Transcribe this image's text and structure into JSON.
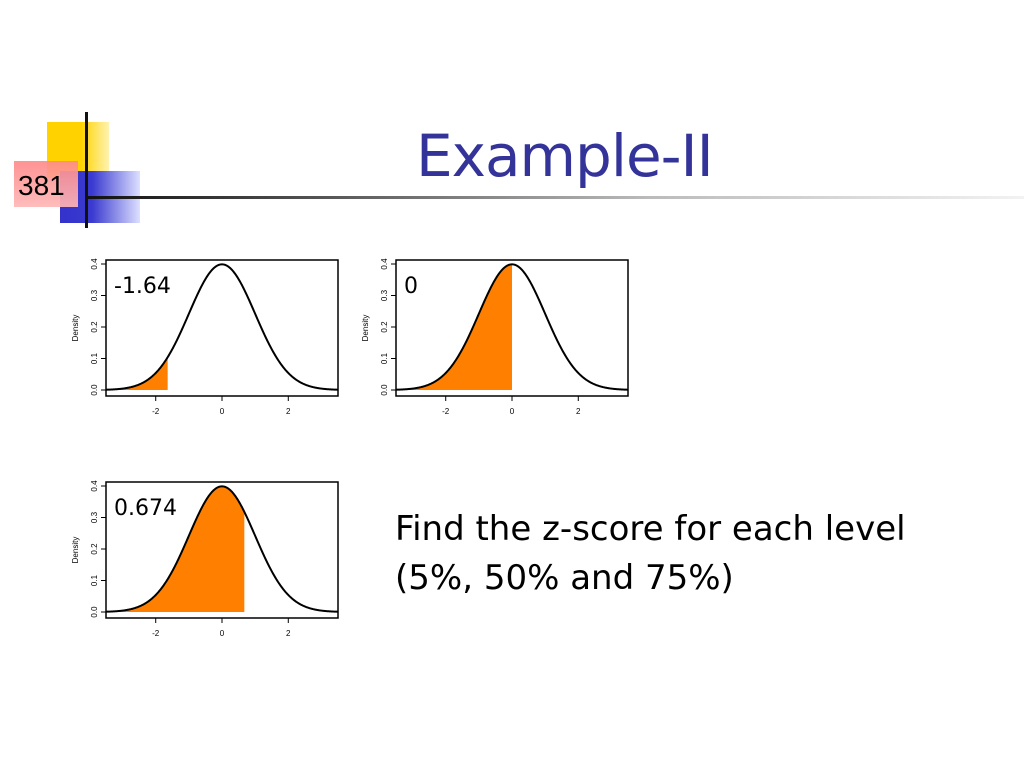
{
  "slide": {
    "number": "381",
    "title": "Example-II",
    "question_line1": "Find the z-score for each level",
    "question_line2": "(5%, 50% and 75%)"
  },
  "colors": {
    "title": "#333399",
    "fill": "#ff8000",
    "curve": "#000000",
    "accent_yellow": "#ffd200",
    "accent_blue": "#3333cc",
    "accent_red": "#ff8a8a"
  },
  "chart_data": [
    {
      "type": "area",
      "annotation": "-1.64",
      "ylabel": "Density",
      "xlim": [
        -3.5,
        3.5
      ],
      "ylim": [
        0,
        0.4
      ],
      "xticks": [
        "-2",
        "0",
        "2"
      ],
      "yticks": [
        "0.0",
        "0.1",
        "0.2",
        "0.3",
        "0.4"
      ],
      "distribution": "standard normal",
      "shaded_upper_z": -1.64,
      "shaded_area": 0.05
    },
    {
      "type": "area",
      "annotation": "0",
      "ylabel": "Density",
      "xlim": [
        -3.5,
        3.5
      ],
      "ylim": [
        0,
        0.4
      ],
      "xticks": [
        "-2",
        "0",
        "2"
      ],
      "yticks": [
        "0.0",
        "0.1",
        "0.2",
        "0.3",
        "0.4"
      ],
      "distribution": "standard normal",
      "shaded_upper_z": 0,
      "shaded_area": 0.5
    },
    {
      "type": "area",
      "annotation": "0.674",
      "ylabel": "Density",
      "xlim": [
        -3.5,
        3.5
      ],
      "ylim": [
        0,
        0.4
      ],
      "xticks": [
        "-2",
        "0",
        "2"
      ],
      "yticks": [
        "0.0",
        "0.1",
        "0.2",
        "0.3",
        "0.4"
      ],
      "distribution": "standard normal",
      "shaded_upper_z": 0.674,
      "shaded_area": 0.75
    }
  ]
}
